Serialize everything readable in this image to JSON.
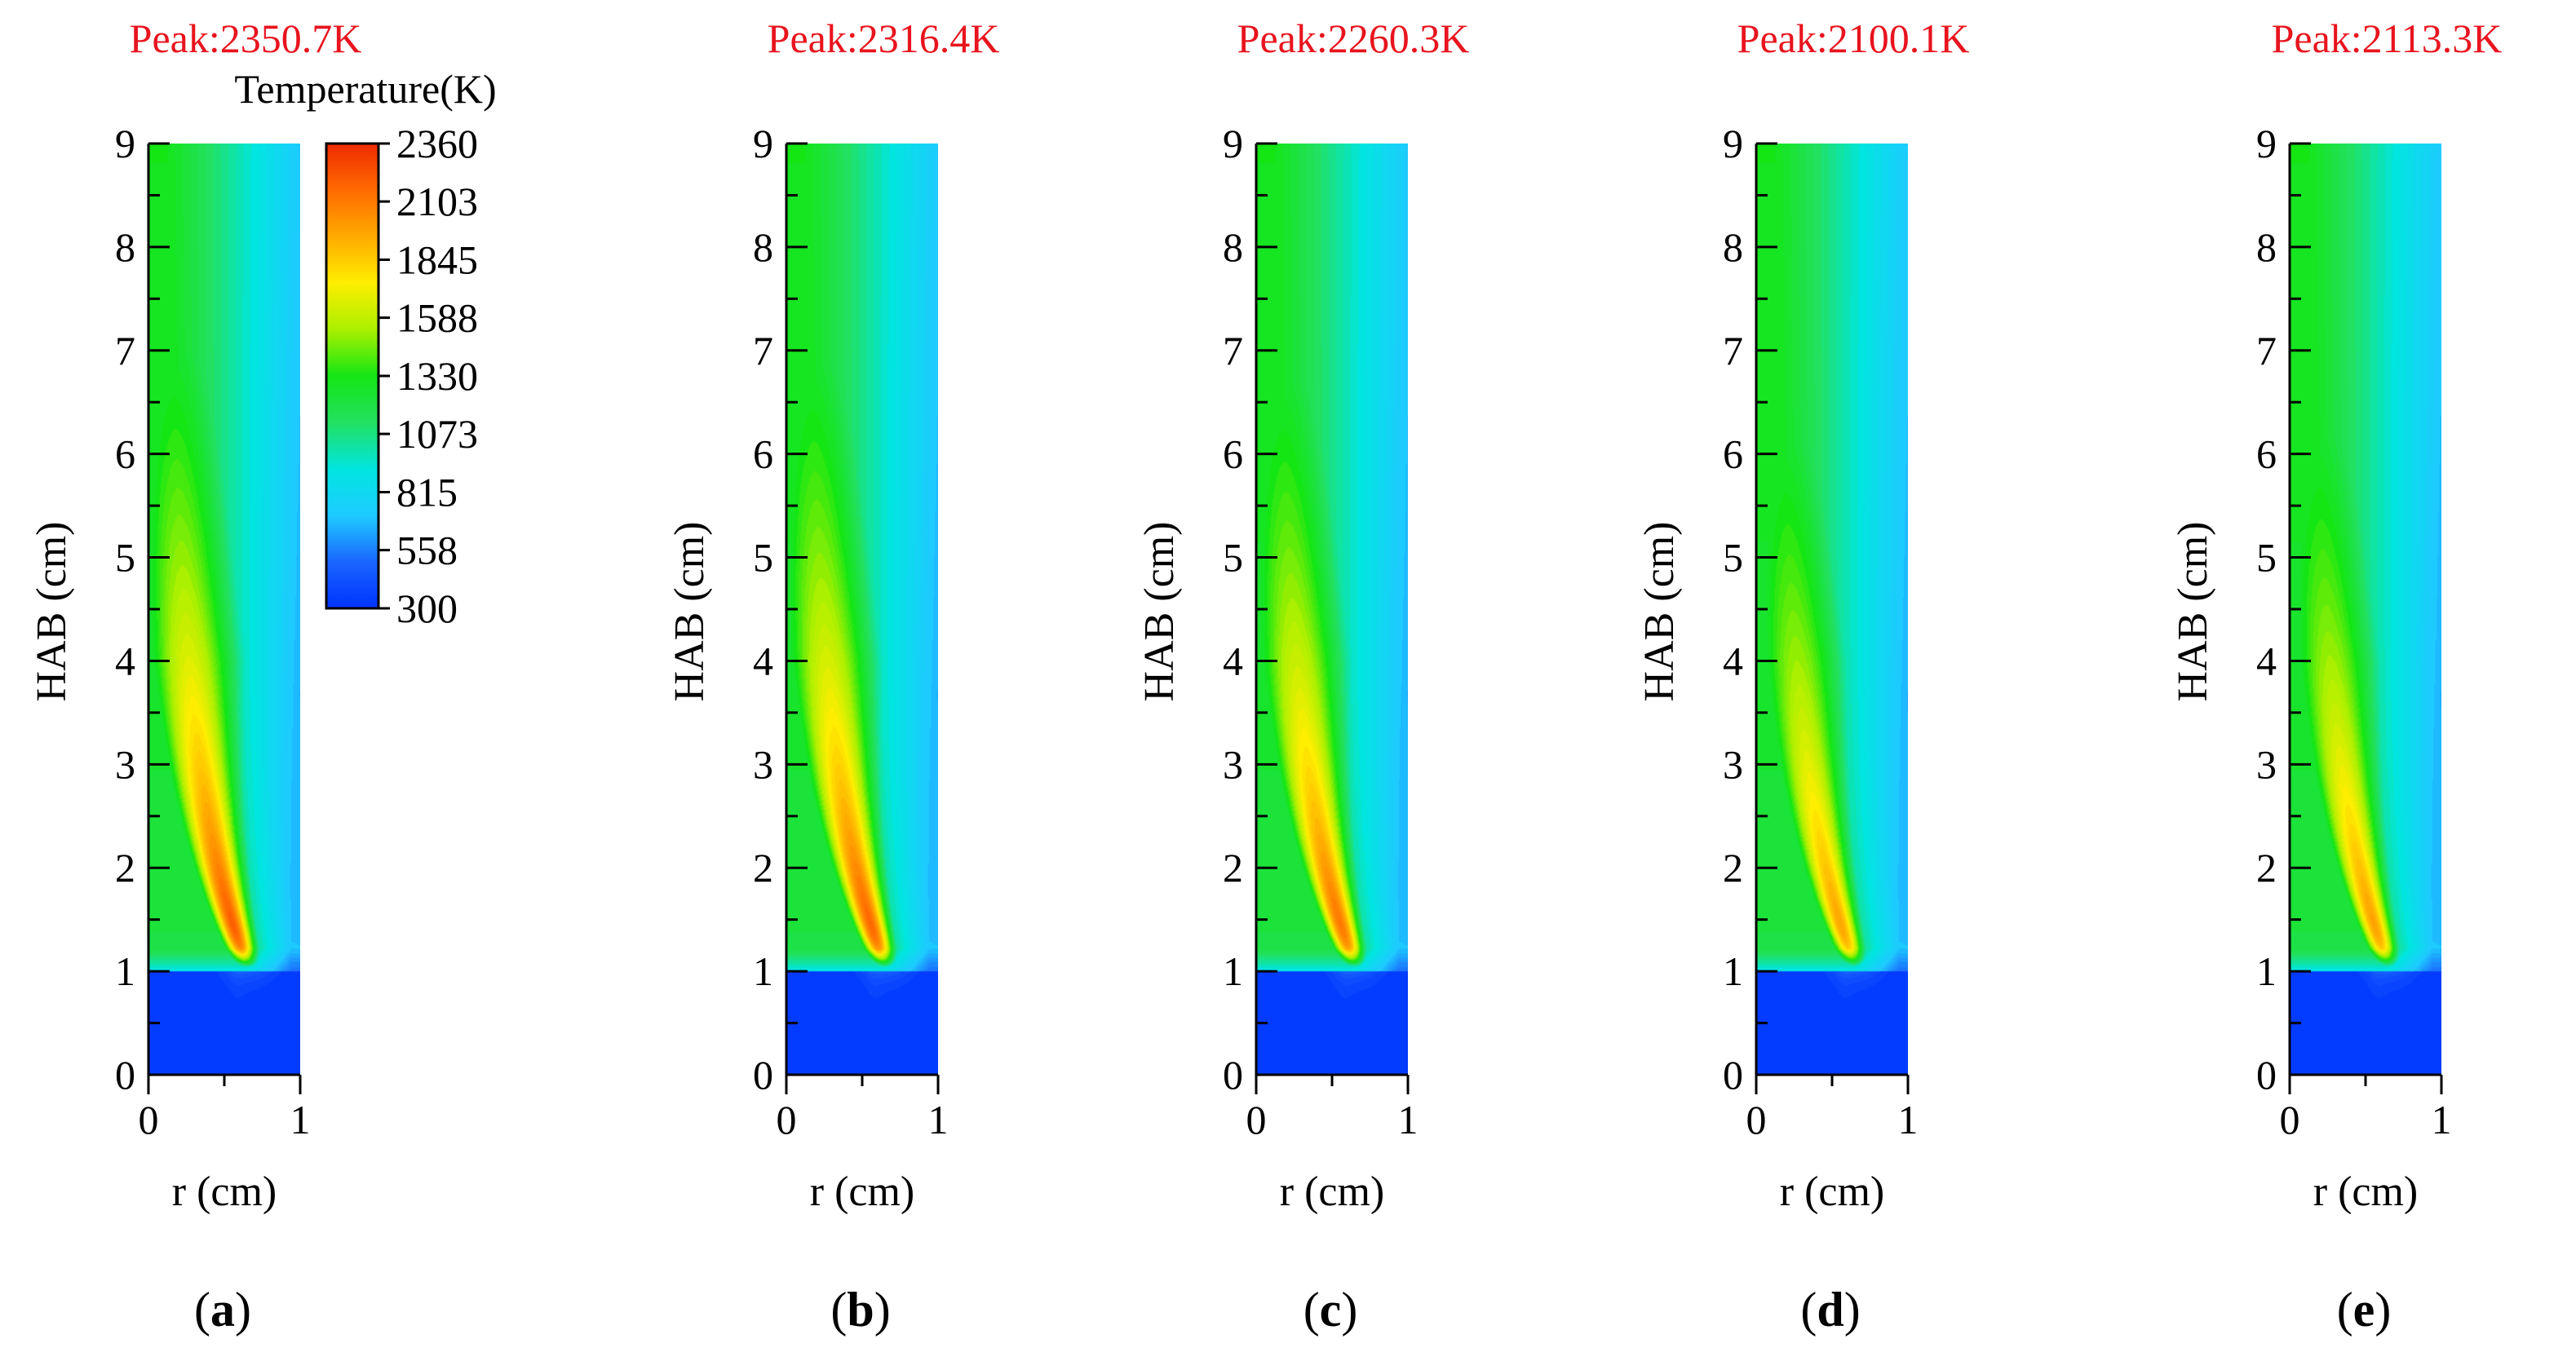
{
  "figure": {
    "peak_color": "#e8141e",
    "colormap_stops": [
      "#0033ff",
      "#1a66ff",
      "#1ecbff",
      "#00e5e0",
      "#22e060",
      "#14e614",
      "#aaf000",
      "#ffee00",
      "#ffaa00",
      "#ff6a00",
      "#ee2a00"
    ]
  },
  "colorbar": {
    "title": "Temperature(K)",
    "ticks": [
      "2360",
      "2103",
      "1845",
      "1588",
      "1330",
      "1073",
      "815",
      "558",
      "300"
    ]
  },
  "chart_data": [
    {
      "type": "heatmap",
      "panel": "a",
      "title": "Peak:2350.7K",
      "peak_temperature_K": 2350.7,
      "xlabel": "r (cm)",
      "ylabel": "HAB (cm)",
      "xlim": [
        0,
        1
      ],
      "ylim": [
        0,
        9
      ],
      "xticks": [
        "0",
        "1"
      ],
      "yticks": [
        "0",
        "1",
        "2",
        "3",
        "4",
        "5",
        "6",
        "7",
        "8",
        "9"
      ],
      "colorbar_range_K": [
        300,
        2360
      ],
      "label": "a"
    },
    {
      "type": "heatmap",
      "panel": "b",
      "title": "Peak:2316.4K",
      "peak_temperature_K": 2316.4,
      "xlabel": "r (cm)",
      "ylabel": "HAB (cm)",
      "xlim": [
        0,
        1
      ],
      "ylim": [
        0,
        9
      ],
      "xticks": [
        "0",
        "1"
      ],
      "yticks": [
        "0",
        "1",
        "2",
        "3",
        "4",
        "5",
        "6",
        "7",
        "8",
        "9"
      ],
      "colorbar_range_K": [
        300,
        2360
      ],
      "label": "b"
    },
    {
      "type": "heatmap",
      "panel": "c",
      "title": "Peak:2260.3K",
      "peak_temperature_K": 2260.3,
      "xlabel": "r (cm)",
      "ylabel": "HAB (cm)",
      "xlim": [
        0,
        1
      ],
      "ylim": [
        0,
        9
      ],
      "xticks": [
        "0",
        "1"
      ],
      "yticks": [
        "0",
        "1",
        "2",
        "3",
        "4",
        "5",
        "6",
        "7",
        "8",
        "9"
      ],
      "colorbar_range_K": [
        300,
        2360
      ],
      "label": "c"
    },
    {
      "type": "heatmap",
      "panel": "d",
      "title": "Peak:2100.1K",
      "peak_temperature_K": 2100.1,
      "xlabel": "r (cm)",
      "ylabel": "HAB (cm)",
      "xlim": [
        0,
        1
      ],
      "ylim": [
        0,
        9
      ],
      "xticks": [
        "0",
        "1"
      ],
      "yticks": [
        "0",
        "1",
        "2",
        "3",
        "4",
        "5",
        "6",
        "7",
        "8",
        "9"
      ],
      "colorbar_range_K": [
        300,
        2360
      ],
      "label": "d"
    },
    {
      "type": "heatmap",
      "panel": "e",
      "title": "Peak:2113.3K",
      "peak_temperature_K": 2113.3,
      "xlabel": "r (cm)",
      "ylabel": "HAB (cm)",
      "xlim": [
        0,
        1
      ],
      "ylim": [
        0,
        9
      ],
      "xticks": [
        "0",
        "1"
      ],
      "yticks": [
        "0",
        "1",
        "2",
        "3",
        "4",
        "5",
        "6",
        "7",
        "8",
        "9"
      ],
      "colorbar_range_K": [
        300,
        2360
      ],
      "label": "e"
    }
  ]
}
